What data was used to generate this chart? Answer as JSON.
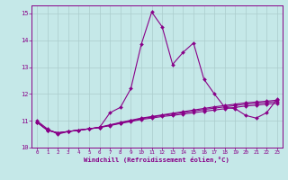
{
  "title": "",
  "xlabel": "Windchill (Refroidissement éolien,°C)",
  "xlim": [
    -0.5,
    23.5
  ],
  "ylim": [
    10,
    15.3
  ],
  "yticks": [
    10,
    11,
    12,
    13,
    14,
    15
  ],
  "xticks": [
    0,
    1,
    2,
    3,
    4,
    5,
    6,
    7,
    8,
    9,
    10,
    11,
    12,
    13,
    14,
    15,
    16,
    17,
    18,
    19,
    20,
    21,
    22,
    23
  ],
  "background_color": "#c5e8e8",
  "line_color": "#880088",
  "grid_color": "#aacccc",
  "series1": [
    11.0,
    10.7,
    10.5,
    10.6,
    10.65,
    10.7,
    10.75,
    11.3,
    11.5,
    12.2,
    13.85,
    15.05,
    14.5,
    13.1,
    13.55,
    13.9,
    12.55,
    12.0,
    11.5,
    11.45,
    11.2,
    11.1,
    11.3,
    11.8
  ],
  "series2": [
    10.95,
    10.65,
    10.55,
    10.6,
    10.65,
    10.7,
    10.75,
    10.82,
    10.9,
    10.97,
    11.05,
    11.1,
    11.16,
    11.2,
    11.25,
    11.3,
    11.35,
    11.4,
    11.45,
    11.5,
    11.55,
    11.58,
    11.62,
    11.65
  ],
  "series3": [
    10.95,
    10.65,
    10.55,
    10.6,
    10.65,
    10.7,
    10.75,
    10.83,
    10.92,
    11.0,
    11.08,
    11.14,
    11.2,
    11.25,
    11.3,
    11.36,
    11.42,
    11.47,
    11.52,
    11.57,
    11.62,
    11.65,
    11.68,
    11.72
  ],
  "series4": [
    10.95,
    10.65,
    10.55,
    10.6,
    10.65,
    10.7,
    10.76,
    10.85,
    10.94,
    11.02,
    11.1,
    11.16,
    11.22,
    11.28,
    11.34,
    11.4,
    11.46,
    11.52,
    11.57,
    11.62,
    11.67,
    11.7,
    11.73,
    11.77
  ]
}
